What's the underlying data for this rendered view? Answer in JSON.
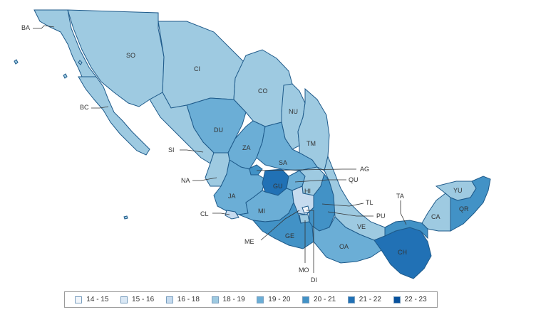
{
  "colors": {
    "c14_15": "#f2f6fb",
    "c15_16": "#dae8f5",
    "c16_18": "#c6dbef",
    "c18_19": "#9ecae1",
    "c19_20": "#6baed6",
    "c20_21": "#4292c6",
    "c21_22": "#2171b5",
    "c22_23": "#08519c",
    "border": "#1e5a8a"
  },
  "legend": [
    {
      "label": "14 - 15",
      "color": "#f2f6fb"
    },
    {
      "label": "15 - 16",
      "color": "#dae8f5"
    },
    {
      "label": "16 - 18",
      "color": "#c6dbef"
    },
    {
      "label": "18 - 19",
      "color": "#9ecae1"
    },
    {
      "label": "19 - 20",
      "color": "#6baed6"
    },
    {
      "label": "20 - 21",
      "color": "#4292c6"
    },
    {
      "label": "21 - 22",
      "color": "#2171b5"
    },
    {
      "label": "22 - 23",
      "color": "#08519c"
    }
  ],
  "states": {
    "BA": "BA",
    "BC": "BC",
    "SO": "SO",
    "CI": "CI",
    "CO": "CO",
    "NU": "NU",
    "TM": "TM",
    "DU": "DU",
    "SI": "SI",
    "ZA": "ZA",
    "SA": "SA",
    "AG": "AG",
    "QU": "QU",
    "NA": "NA",
    "JA": "JA",
    "GU": "GU",
    "HI": "HI",
    "TL": "TL",
    "CL": "CL",
    "MI": "MI",
    "ME": "ME",
    "PU": "PU",
    "VE": "VE",
    "GE": "GE",
    "OA": "OA",
    "MO": "MO",
    "DI": "DI",
    "CH": "CH",
    "TA": "TA",
    "CA": "CA",
    "YU": "YU",
    "QR": "QR"
  }
}
